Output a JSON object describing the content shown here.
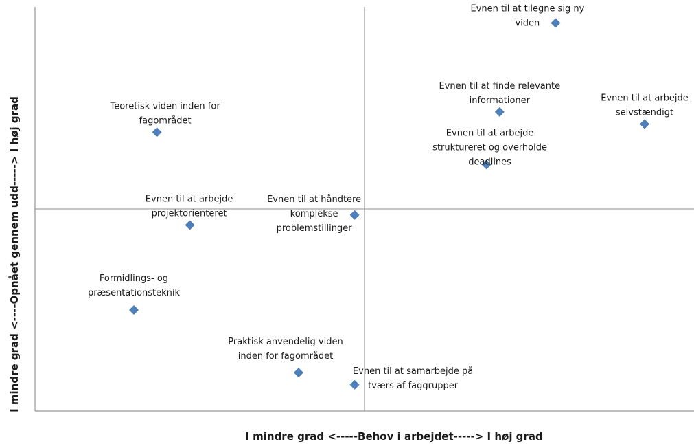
{
  "chart_data": {
    "type": "scatter",
    "title": "",
    "xlabel": "I mindre grad <-----Behov i arbejdet-----> I høj grad",
    "ylabel": "I mindre grad <----Opnået gennem udd-----> I høj grad",
    "xlim": [
      0,
      100
    ],
    "ylim": [
      0,
      100
    ],
    "grid": false,
    "quadrant_lines": {
      "x": 50,
      "y": 50
    },
    "marker_color": "#4F81BD",
    "points": [
      {
        "x": 79,
        "y": 96,
        "label": [
          "Evnen til at tilegne sig ny",
          "viden"
        ]
      },
      {
        "x": 70.5,
        "y": 74,
        "label": [
          "Evnen til at finde relevante",
          "informationer"
        ]
      },
      {
        "x": 92.5,
        "y": 71,
        "label": [
          "Evnen til at arbejde",
          "selvstændigt"
        ]
      },
      {
        "x": 68.5,
        "y": 61,
        "label": [
          "Evnen til at arbejde",
          "struktureret og overholde",
          "deadlines"
        ]
      },
      {
        "x": 18.5,
        "y": 69,
        "label": [
          "Teoretisk viden inden for",
          "fagområdet"
        ]
      },
      {
        "x": 23.5,
        "y": 46,
        "label": [
          "Evnen til at arbejde",
          "projektorienteret"
        ]
      },
      {
        "x": 48.5,
        "y": 48.5,
        "label": [
          "Evnen til at håndtere",
          "komplekse",
          "problemstillinger"
        ]
      },
      {
        "x": 15,
        "y": 25,
        "label": [
          "Formidlings- og",
          "præsentationsteknik"
        ]
      },
      {
        "x": 40,
        "y": 9.5,
        "label": [
          "Praktisk anvendelig viden",
          "inden for fagområdet"
        ]
      },
      {
        "x": 48.5,
        "y": 6.5,
        "label": [
          "Evnen til at samarbejde på",
          "tværs af faggrupper"
        ]
      }
    ]
  }
}
